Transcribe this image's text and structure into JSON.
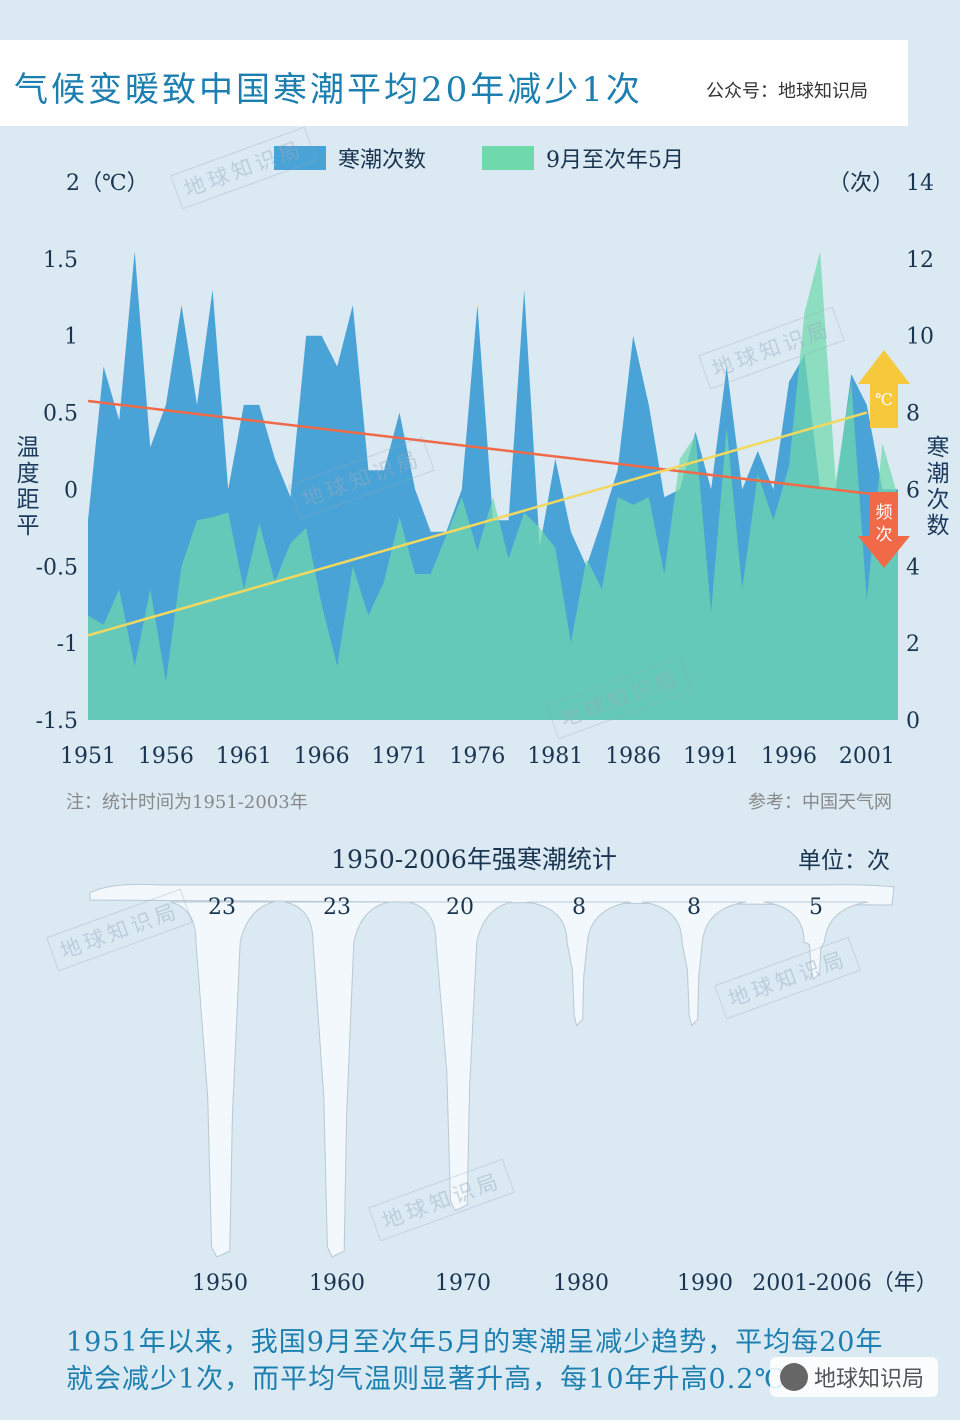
{
  "header": {
    "title": "气候变暖致中国寒潮平均20年减少1次",
    "source_account": "公众号：地球知识局"
  },
  "chart_data": [
    {
      "type": "area",
      "legend": [
        "寒潮次数",
        "9月至次年5月"
      ],
      "left_axis": {
        "title": "温度距平",
        "unit_label": "2（℃）",
        "ticks": [
          "1.5",
          "1",
          "0.5",
          "0",
          "-0.5",
          "-1",
          "-1.5"
        ],
        "tick_values": [
          1.5,
          1,
          0.5,
          0,
          -0.5,
          -1,
          -1.5
        ],
        "range": [
          -1.5,
          2
        ]
      },
      "right_axis": {
        "title": "寒潮次数",
        "unit_label": "（次）",
        "top_tick": "14",
        "ticks": [
          "12",
          "10",
          "8",
          "6",
          "4",
          "2",
          "0"
        ],
        "tick_values": [
          12,
          10,
          8,
          6,
          4,
          2,
          0
        ],
        "range": [
          0,
          14
        ]
      },
      "x_ticks": [
        "1951",
        "1956",
        "1961",
        "1966",
        "1971",
        "1976",
        "1981",
        "1986",
        "1991",
        "1996",
        "2001"
      ],
      "x_range": [
        1951,
        2003
      ],
      "years": [
        1951,
        1952,
        1953,
        1954,
        1955,
        1956,
        1957,
        1958,
        1959,
        1960,
        1961,
        1962,
        1963,
        1964,
        1965,
        1966,
        1967,
        1968,
        1969,
        1970,
        1971,
        1972,
        1973,
        1974,
        1975,
        1976,
        1977,
        1978,
        1979,
        1980,
        1981,
        1982,
        1983,
        1984,
        1985,
        1986,
        1987,
        1988,
        1989,
        1990,
        1991,
        1992,
        1993,
        1994,
        1995,
        1996,
        1997,
        1998,
        1999,
        2000,
        2001,
        2002,
        2003
      ],
      "series": [
        {
          "name": "寒潮次数",
          "color": "#4aa3d6",
          "axis": "right",
          "values": [
            5.2,
            9.2,
            7.8,
            12.2,
            7.1,
            8.2,
            10.8,
            8.2,
            11.2,
            6,
            8.2,
            8.2,
            6.8,
            5.8,
            10,
            10,
            9.2,
            10.8,
            6.5,
            6.5,
            8,
            6,
            4.9,
            4.9,
            6,
            10.8,
            5.2,
            5.2,
            11.2,
            4.5,
            6.8,
            4.9,
            4,
            5.2,
            6.5,
            10,
            8.2,
            5.8,
            6,
            7.5,
            6,
            9.2,
            6,
            7,
            6,
            8.8,
            9.5,
            6,
            6,
            9,
            8.2,
            6,
            6
          ]
        },
        {
          "name": "9月至次年5月",
          "color": "#6fd8ac",
          "axis": "left",
          "values": [
            -0.82,
            -0.88,
            -0.65,
            -1.15,
            -0.65,
            -1.25,
            -0.5,
            -0.2,
            -0.18,
            -0.15,
            -0.65,
            -0.22,
            -0.6,
            -0.35,
            -0.25,
            -0.75,
            -1.15,
            -0.5,
            -0.82,
            -0.6,
            -0.18,
            -0.55,
            -0.55,
            -0.3,
            -0.05,
            -0.4,
            -0.05,
            -0.45,
            -0.15,
            -0.25,
            -0.38,
            -1,
            -0.45,
            -0.65,
            -0.05,
            -0.1,
            -0.05,
            -0.55,
            0.2,
            0.35,
            -0.8,
            0.4,
            -0.65,
            0.1,
            -0.2,
            0.15,
            1.15,
            1.55,
            0.05,
            0.7,
            -0.72,
            0.3,
            -0.05
          ]
        }
      ],
      "trend_lines": [
        {
          "name": "寒潮次数趋势",
          "color": "#f06a48",
          "axis": "right",
          "start": [
            1951,
            8.3
          ],
          "end": [
            2003,
            5.8
          ]
        },
        {
          "name": "气温趋势",
          "color": "#f2d860",
          "axis": "left",
          "start": [
            1951,
            -0.95
          ],
          "end": [
            2001,
            0.5
          ]
        }
      ],
      "arrows": [
        {
          "label": "℃",
          "color": "#f6c93c",
          "direction": "up"
        },
        {
          "label": "频次",
          "color": "#f06a48",
          "direction": "down"
        }
      ],
      "note": "注：统计时间为1951-2003年",
      "reference": "参考：中国天气网"
    },
    {
      "type": "bar",
      "title": "1950-2006年强寒潮统计",
      "unit": "单位：次",
      "categories": [
        "1950",
        "1960",
        "1970",
        "1980",
        "1990",
        "2001-2006（年）"
      ],
      "values": [
        23,
        23,
        20,
        8,
        8,
        5
      ],
      "color": "#f2f8fc"
    }
  ],
  "watermark": "地球知识局",
  "footer": {
    "line1": "1951年以来，我国9月至次年5月的寒潮呈减少趋势，平均每20年",
    "line2": "就会减少1次，而平均气温则显著升高，每10年升高0.2",
    "line2_end": "℃",
    "logo_text": "地球知识局"
  }
}
